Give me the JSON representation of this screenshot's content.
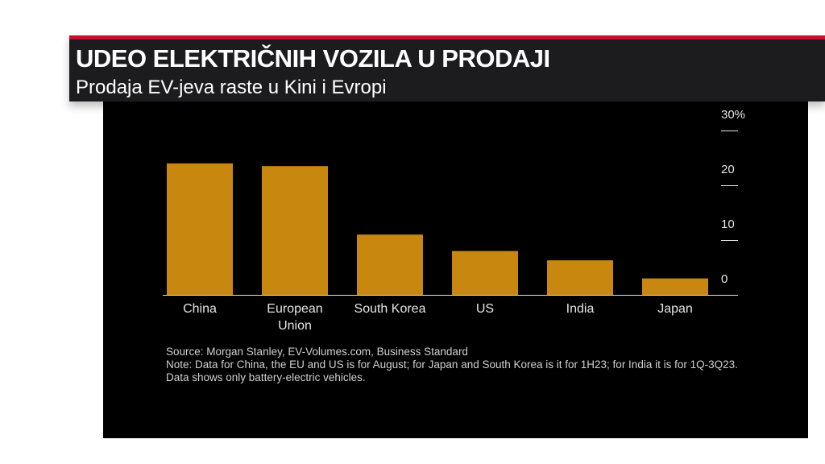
{
  "header": {
    "title": "UDEO ELEKTRIČNIH VOZILA U PRODAJI",
    "subtitle": "Prodaja EV-jeva raste u Kini i Evropi"
  },
  "colors": {
    "bar": "#c8870e",
    "accent": "#c8102e",
    "panel": "#000000"
  },
  "chart_data": {
    "type": "bar",
    "categories": [
      [
        "China"
      ],
      [
        "European",
        "Union"
      ],
      [
        "South Korea"
      ],
      [
        "US"
      ],
      [
        "India"
      ],
      [
        "Japan"
      ]
    ],
    "values": [
      24,
      23.5,
      11,
      8,
      6.3,
      3
    ],
    "yticks": [
      "30%",
      "20",
      "10",
      "0"
    ],
    "ytick_values": [
      30,
      20,
      10,
      0
    ],
    "ylim": [
      0,
      30
    ],
    "grid": false
  },
  "notes": {
    "source": "Source: Morgan Stanley, EV-Volumes.com, Business Standard",
    "note": "Note: Data for China, the EU and US is for August; for Japan and South Korea is it for 1H23; for India it is for 1Q-3Q23. Data shows only battery-electric vehicles."
  }
}
